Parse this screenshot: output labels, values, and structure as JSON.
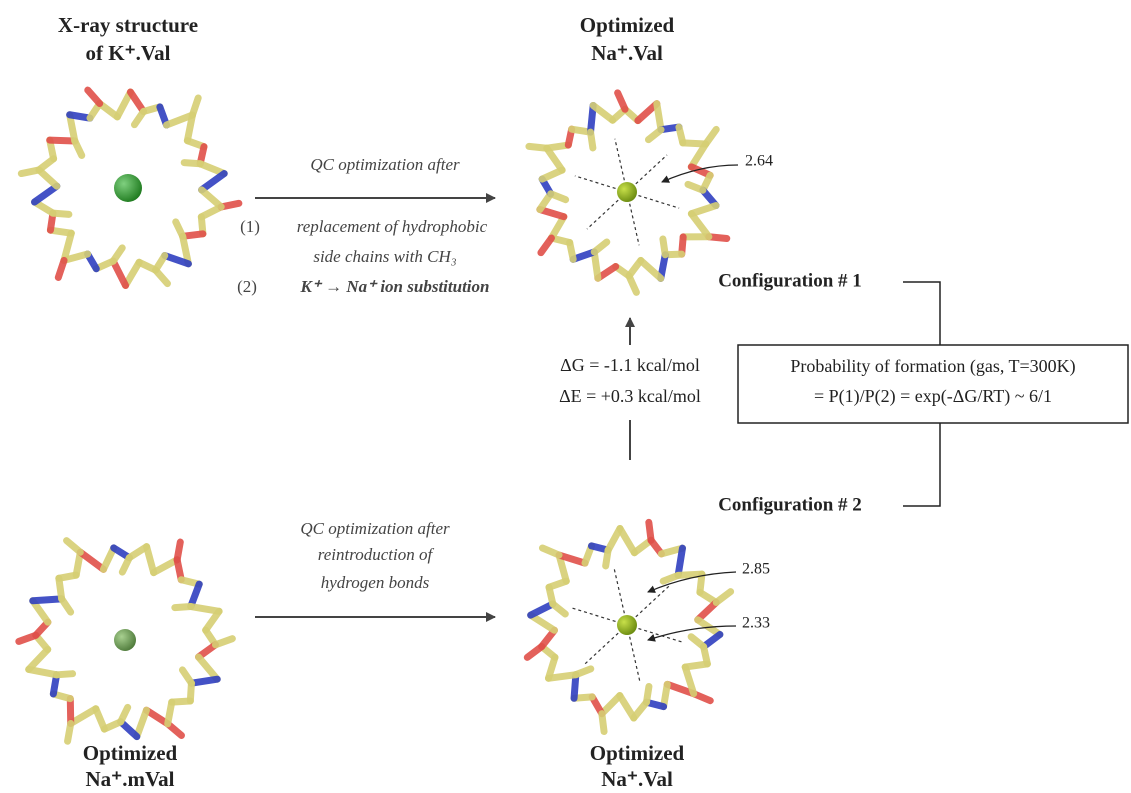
{
  "panels": [
    {
      "title": [
        "X-ray structure",
        "of K⁺.Val"
      ]
    },
    {
      "title": [
        "Optimized",
        "Na⁺.Val"
      ]
    },
    {
      "title": [
        "Optimized",
        "Na⁺.mVal"
      ]
    },
    {
      "title": [
        "Optimized",
        "Na⁺.Val"
      ]
    }
  ],
  "top_arrow": {
    "lines": [
      "QC optimization after",
      "replacement of hydrophobic",
      "side chains with CH₃",
      "K⁺ → Na⁺ ion substitution"
    ],
    "steps": [
      "(1)",
      "(2)"
    ]
  },
  "bottom_arrow": {
    "lines": [
      "QC optimization after",
      "reintroduction of",
      "hydrogen bonds"
    ]
  },
  "distances": [
    "2.64",
    "2.85",
    "2.33"
  ],
  "configurations": [
    "Configuration # 1",
    "Configuration # 2"
  ],
  "energies": [
    "ΔG = -1.1 kcal/mol",
    "ΔE = +0.3 kcal/mol"
  ],
  "probability": [
    "Probability of formation (gas, T=300K)",
    "= P(1)/P(2) = exp(-ΔG/RT) ~ 6/1"
  ]
}
